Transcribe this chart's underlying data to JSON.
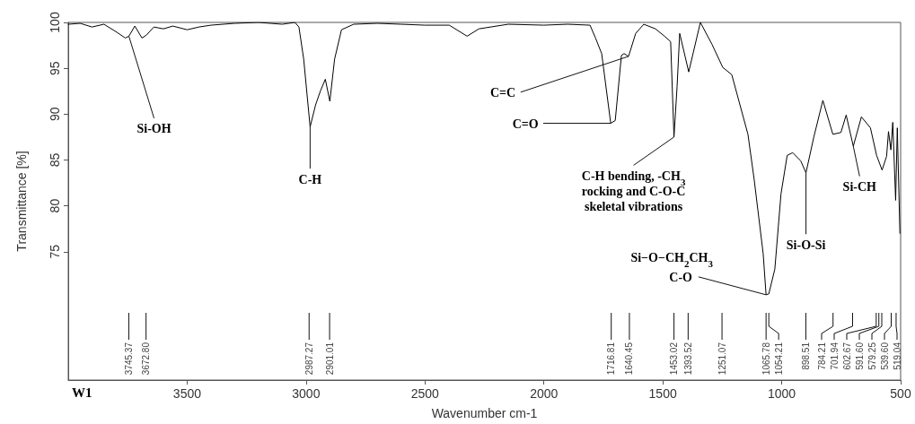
{
  "chart_data": {
    "type": "line",
    "xlabel": "Wavenumber cm-1",
    "ylabel": "Transmittance [%]",
    "color": "#000000",
    "marker": "none",
    "line_style": "solid",
    "grid": false,
    "xlim": [
      4000,
      500
    ],
    "ylim": [
      61,
      100
    ],
    "xticks": [
      3500,
      3000,
      2500,
      2000,
      1500,
      1000,
      500
    ],
    "yticks": [
      75,
      80,
      85,
      90,
      95,
      100
    ],
    "x": [
      4000,
      3950,
      3900,
      3850,
      3800,
      3760,
      3745,
      3720,
      3690,
      3672,
      3640,
      3600,
      3560,
      3500,
      3450,
      3400,
      3300,
      3200,
      3100,
      3047,
      3030,
      3010,
      2983,
      2960,
      2940,
      2919,
      2900,
      2880,
      2851,
      2800,
      2700,
      2600,
      2500,
      2398,
      2323,
      2273,
      2150,
      2000,
      1900,
      1806,
      1783,
      1757,
      1719,
      1700,
      1674,
      1663,
      1644,
      1614,
      1580,
      1531,
      1493,
      1467,
      1453,
      1440,
      1429,
      1391,
      1342,
      1293,
      1248,
      1210,
      1142,
      1116,
      1078,
      1065.78,
      1054.21,
      1029,
      1003,
      977,
      954,
      920,
      898,
      865,
      827,
      785,
      751,
      729,
      699,
      665,
      627,
      601,
      578,
      559,
      551,
      541,
      533,
      521,
      514,
      503
    ],
    "values": [
      99.8,
      99.9,
      99.5,
      99.8,
      99.0,
      98.3,
      98.5,
      99.6,
      98.3,
      98.6,
      99.5,
      99.3,
      99.6,
      99.2,
      99.5,
      99.7,
      99.9,
      100,
      99.8,
      100,
      99.5,
      96.0,
      88.6,
      91.0,
      92.5,
      93.8,
      91.4,
      96.0,
      99.2,
      99.8,
      99.9,
      99.8,
      99.7,
      99.7,
      98.5,
      99.3,
      99.8,
      99.7,
      99.8,
      99.7,
      98.3,
      96.6,
      89.0,
      89.3,
      96.4,
      96.6,
      96.3,
      98.8,
      99.8,
      99.3,
      98.5,
      97.9,
      87.5,
      93.0,
      98.8,
      94.6,
      100,
      97.6,
      95.1,
      94.3,
      87.8,
      82.9,
      74.8,
      70.3,
      70.4,
      73.1,
      81.3,
      85.5,
      85.8,
      84.9,
      83.6,
      87.5,
      91.5,
      87.8,
      88.0,
      89.9,
      86.5,
      89.7,
      88.5,
      85.5,
      83.9,
      85.4,
      88.1,
      86.1,
      89.1,
      80.6,
      88.5,
      77.0
    ],
    "annotations": [
      {
        "text": "Si-OH",
        "x": 3745,
        "y": 98.5
      },
      {
        "text": "C-H",
        "x": 2983,
        "y": 88.6
      },
      {
        "text": "C=C",
        "x": 1644,
        "y": 96.3
      },
      {
        "text": "C=O",
        "x": 1719,
        "y": 89.0
      },
      {
        "text": "C-H bending, -CH$_{3}$\nrocking and C-O-C\nskeletal vibrations",
        "x": 1453,
        "y": 87.5
      },
      {
        "text": "Si−O−CH$_{2}$CH$_{3}$",
        "x": 1065.78,
        "y": 70.3
      },
      {
        "text": "C-O",
        "x": 1065.78,
        "y": 70.3
      },
      {
        "text": "Si-O-Si",
        "x": 898,
        "y": 83.6
      },
      {
        "text": "Si-CH",
        "x": 699,
        "y": 86.5
      },
      {
        "text": "3745.37",
        "x": 3745.37
      },
      {
        "text": "3672.80",
        "x": 3672.8
      },
      {
        "text": "2987.27",
        "x": 2987.27
      },
      {
        "text": "2901.01",
        "x": 2901.01
      },
      {
        "text": "1716.81",
        "x": 1716.81
      },
      {
        "text": "1640.45",
        "x": 1640.45
      },
      {
        "text": "1453.02",
        "x": 1453.02
      },
      {
        "text": "1393.52",
        "x": 1393.52
      },
      {
        "text": "1251.07",
        "x": 1251.07
      },
      {
        "text": "1065.78",
        "x": 1065.78
      },
      {
        "text": "1054.21",
        "x": 1054.21
      },
      {
        "text": "898.51",
        "x": 898.51
      },
      {
        "text": "784.21",
        "x": 784.21
      },
      {
        "text": "701.94",
        "x": 701.94
      },
      {
        "text": "602.67",
        "x": 602.67
      },
      {
        "text": "591.60",
        "x": 591.6
      },
      {
        "text": "579.25",
        "x": 579.25
      },
      {
        "text": "539.60",
        "x": 539.6
      },
      {
        "text": "519.04",
        "x": 519.04
      },
      "W1"
    ]
  }
}
